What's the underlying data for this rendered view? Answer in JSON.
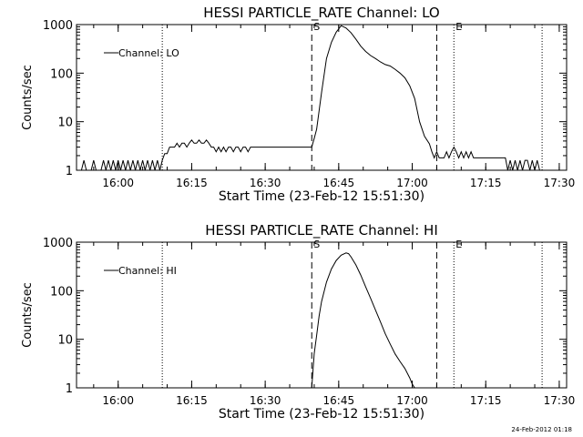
{
  "footer_timestamp": "24-Feb-2012 01:18",
  "chart_data": [
    {
      "type": "line",
      "title": "HESSI PARTICLE_RATE Channel: LO",
      "xlabel": "Start Time (23-Feb-12 15:51:30)",
      "ylabel": "Counts/sec",
      "yscale": "log",
      "ylim": [
        1,
        1000
      ],
      "xlim_minutes": [
        0,
        100
      ],
      "x_tick_labels": [
        "16:00",
        "16:15",
        "16:30",
        "16:45",
        "17:00",
        "17:15",
        "17:30"
      ],
      "x_tick_minutes": [
        8.5,
        23.5,
        38.5,
        53.5,
        68.5,
        83.5,
        98.5
      ],
      "y_tick_labels": [
        "1",
        "10",
        "100",
        "1000"
      ],
      "y_tick_values": [
        1,
        10,
        100,
        1000
      ],
      "grid": false,
      "legend": "top-left",
      "legend_label": "Channel: LO",
      "markers": [
        {
          "style": "dotted",
          "minute": 17.5,
          "label": ""
        },
        {
          "style": "dashed",
          "minute": 48,
          "label": "S"
        },
        {
          "style": "dashed",
          "minute": 73.5,
          "label": ""
        },
        {
          "style": "dotted",
          "minute": 77,
          "label": "E"
        },
        {
          "style": "dotted",
          "minute": 95,
          "label": ""
        }
      ],
      "series": [
        {
          "x": [
            0,
            1,
            1.5,
            2,
            3,
            3.5,
            4,
            5,
            5.5,
            6,
            6.5,
            7,
            7.5,
            8,
            8.5,
            9,
            9.5,
            10,
            10.5,
            11,
            11.5,
            12,
            12.5,
            13,
            13.5,
            14,
            14.5,
            15,
            15.5,
            16,
            16.5,
            17,
            17.5,
            18,
            18.5,
            19,
            19.5,
            20,
            20.5,
            21,
            21.5,
            22,
            22.5,
            23,
            23.5,
            24,
            24.5,
            25,
            25.5,
            26,
            26.5,
            27,
            27.5,
            28,
            28.5,
            29,
            29.5,
            30,
            30.5,
            31,
            31.5,
            32,
            32.5,
            33,
            33.5,
            34,
            34.5,
            35,
            35.5,
            36,
            36.5,
            37,
            37.5,
            38,
            38.5,
            39,
            39.5,
            40,
            40.5,
            41,
            41.5,
            42,
            42.5,
            43,
            43.5,
            44,
            44.5,
            45,
            45.5,
            46,
            46.5,
            47,
            47.5,
            48,
            48.5,
            49,
            50,
            51,
            52,
            53,
            54,
            55,
            56,
            57,
            58,
            59,
            60,
            61,
            62,
            63,
            64,
            65,
            66,
            67,
            68,
            69,
            70,
            71,
            72,
            72.5,
            73,
            73.5,
            74,
            74.5,
            75,
            75.5,
            76,
            76.5,
            77,
            77.5,
            78,
            78.5,
            79,
            79.5,
            80,
            80.5,
            81,
            81.5,
            82,
            82.5,
            83,
            83.5,
            84,
            84.5,
            85,
            85.5,
            86,
            86.5,
            87,
            87.5,
            88,
            88.5,
            89,
            89.5,
            90,
            90.5,
            91,
            91.5,
            92,
            92.5,
            93,
            93.5,
            94,
            94.5,
            95,
            96,
            97,
            98,
            99,
            100
          ],
          "values": [
            1,
            1,
            1.6,
            1,
            1,
            1.6,
            1,
            1,
            1.6,
            1,
            1.6,
            1,
            1.6,
            1,
            1.6,
            1,
            1.6,
            1,
            1.6,
            1,
            1.6,
            1,
            1.6,
            1,
            1.6,
            1,
            1.6,
            1,
            1.6,
            1,
            1.6,
            1,
            1.6,
            2.2,
            2.2,
            3,
            3,
            3,
            3.6,
            3,
            3.6,
            3.6,
            3,
            3.6,
            4.2,
            3.6,
            3.6,
            4.2,
            3.6,
            3.6,
            4.2,
            3.6,
            3,
            3,
            2.4,
            3,
            2.4,
            3,
            2.4,
            3,
            3,
            2.4,
            3,
            3,
            2.4,
            3,
            3,
            2.4,
            3,
            3,
            3,
            3,
            3,
            3,
            3,
            3,
            3,
            3,
            3,
            3,
            3,
            3,
            3,
            3,
            3,
            3,
            3,
            3,
            3,
            3,
            3,
            3,
            3,
            3,
            4.5,
            7,
            40,
            200,
            430,
            700,
            950,
            850,
            680,
            500,
            360,
            280,
            230,
            200,
            170,
            150,
            140,
            120,
            100,
            80,
            55,
            30,
            10,
            5,
            3.5,
            2.4,
            1.8,
            2.4,
            1.8,
            1.8,
            1.8,
            2.4,
            1.8,
            2.4,
            3,
            2.4,
            1.8,
            2.4,
            1.8,
            2.4,
            1.8,
            2.4,
            1.8,
            1.8,
            1.8,
            1.8,
            1.8,
            1.8,
            1.8,
            1.8,
            1.8,
            1.8,
            1.8,
            1.8,
            1.8,
            1.8,
            1,
            1.6,
            1,
            1.6,
            1,
            1.6,
            1,
            1.6,
            1.6,
            1,
            1.6,
            1,
            1.6,
            1,
            1,
            1,
            1,
            1,
            1,
            1
          ]
        }
      ]
    },
    {
      "type": "line",
      "title": "HESSI PARTICLE_RATE Channel: HI",
      "xlabel": "Start Time (23-Feb-12 15:51:30)",
      "ylabel": "Counts/sec",
      "yscale": "log",
      "ylim": [
        1,
        1000
      ],
      "xlim_minutes": [
        0,
        100
      ],
      "x_tick_labels": [
        "16:00",
        "16:15",
        "16:30",
        "16:45",
        "17:00",
        "17:15",
        "17:30"
      ],
      "x_tick_minutes": [
        8.5,
        23.5,
        38.5,
        53.5,
        68.5,
        83.5,
        98.5
      ],
      "y_tick_labels": [
        "1",
        "10",
        "100",
        "1000"
      ],
      "y_tick_values": [
        1,
        10,
        100,
        1000
      ],
      "grid": false,
      "legend": "top-left",
      "legend_label": "Channel: HI",
      "markers": [
        {
          "style": "dotted",
          "minute": 17.5,
          "label": ""
        },
        {
          "style": "dashed",
          "minute": 48,
          "label": "S"
        },
        {
          "style": "dashed",
          "minute": 73.5,
          "label": ""
        },
        {
          "style": "dotted",
          "minute": 77,
          "label": "E"
        },
        {
          "style": "dotted",
          "minute": 95,
          "label": ""
        }
      ],
      "series": [
        {
          "x": [
            48,
            48.5,
            49,
            49.5,
            50,
            51,
            52,
            53,
            54,
            55,
            55.5,
            56,
            57,
            58,
            59,
            60,
            61,
            62,
            63,
            64,
            65,
            66,
            67,
            68,
            68.5,
            69
          ],
          "values": [
            1,
            5,
            12,
            30,
            60,
            150,
            280,
            420,
            540,
            600,
            580,
            500,
            340,
            210,
            120,
            70,
            40,
            23,
            13,
            8,
            5,
            3.5,
            2.5,
            1.6,
            1.2,
            1
          ]
        }
      ]
    }
  ]
}
